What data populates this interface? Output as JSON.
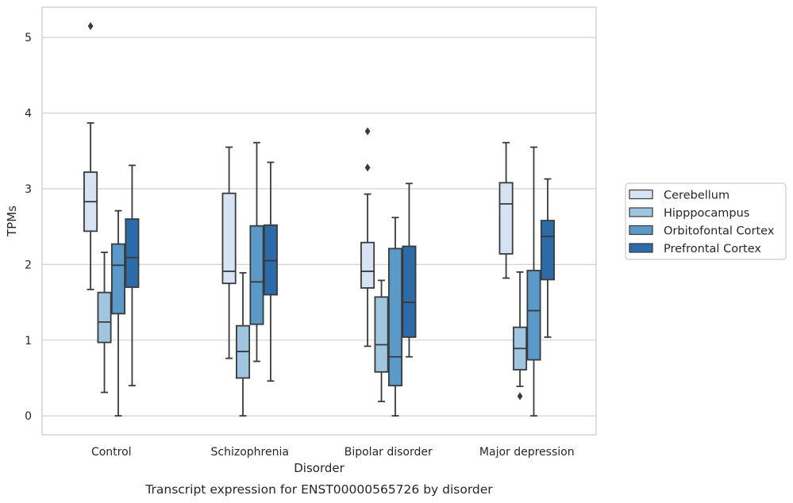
{
  "chart_data": {
    "type": "box",
    "title": "",
    "caption": "Transcript expression for ENST00000565726 by disorder",
    "xlabel": "Disorder",
    "ylabel": "TPMs",
    "ylim": [
      -0.25,
      5.4
    ],
    "yticks": [
      "0",
      "1",
      "2",
      "3",
      "4",
      "5"
    ],
    "categories": [
      "Control",
      "Schizophrenia",
      "Bipolar disorder",
      "Major depression"
    ],
    "grid": "horizontal",
    "legend_position": "right",
    "series": [
      {
        "name": "Cerebellum",
        "color": "#d6e3f2",
        "boxes": [
          {
            "whisker_low": 1.67,
            "q1": 2.44,
            "median": 2.83,
            "q3": 3.22,
            "whisker_high": 3.87,
            "outliers": [
              5.15
            ]
          },
          {
            "whisker_low": 0.76,
            "q1": 1.75,
            "median": 1.91,
            "q3": 2.94,
            "whisker_high": 3.55,
            "outliers": []
          },
          {
            "whisker_low": 0.92,
            "q1": 1.69,
            "median": 1.91,
            "q3": 2.29,
            "whisker_high": 2.93,
            "outliers": [
              3.28,
              3.76
            ]
          },
          {
            "whisker_low": 1.82,
            "q1": 2.14,
            "median": 2.8,
            "q3": 3.08,
            "whisker_high": 3.61,
            "outliers": []
          }
        ]
      },
      {
        "name": "Hipppocampus",
        "color": "#9fc5df",
        "boxes": [
          {
            "whisker_low": 0.31,
            "q1": 0.97,
            "median": 1.24,
            "q3": 1.63,
            "whisker_high": 2.16,
            "outliers": []
          },
          {
            "whisker_low": 0.0,
            "q1": 0.5,
            "median": 0.85,
            "q3": 1.19,
            "whisker_high": 1.89,
            "outliers": []
          },
          {
            "whisker_low": 0.19,
            "q1": 0.58,
            "median": 0.94,
            "q3": 1.57,
            "whisker_high": 1.79,
            "outliers": []
          },
          {
            "whisker_low": 0.39,
            "q1": 0.61,
            "median": 0.89,
            "q3": 1.17,
            "whisker_high": 1.9,
            "outliers": [
              0.26
            ]
          }
        ]
      },
      {
        "name": "Orbitofontal Cortex",
        "color": "#5b9ac8",
        "boxes": [
          {
            "whisker_low": 0.0,
            "q1": 1.35,
            "median": 1.99,
            "q3": 2.27,
            "whisker_high": 2.71,
            "outliers": []
          },
          {
            "whisker_low": 0.72,
            "q1": 1.21,
            "median": 1.77,
            "q3": 2.51,
            "whisker_high": 3.61,
            "outliers": []
          },
          {
            "whisker_low": 0.0,
            "q1": 0.4,
            "median": 0.78,
            "q3": 2.21,
            "whisker_high": 2.62,
            "outliers": []
          },
          {
            "whisker_low": 0.0,
            "q1": 0.74,
            "median": 1.39,
            "q3": 1.92,
            "whisker_high": 3.55,
            "outliers": []
          }
        ]
      },
      {
        "name": "Prefrontal Cortex",
        "color": "#2d6aa8",
        "boxes": [
          {
            "whisker_low": 0.4,
            "q1": 1.7,
            "median": 2.09,
            "q3": 2.6,
            "whisker_high": 3.31,
            "outliers": []
          },
          {
            "whisker_low": 0.46,
            "q1": 1.6,
            "median": 2.05,
            "q3": 2.52,
            "whisker_high": 3.35,
            "outliers": []
          },
          {
            "whisker_low": 0.78,
            "q1": 1.04,
            "median": 1.5,
            "q3": 2.24,
            "whisker_high": 3.07,
            "outliers": []
          },
          {
            "whisker_low": 1.04,
            "q1": 1.8,
            "median": 2.37,
            "q3": 2.58,
            "whisker_high": 3.13,
            "outliers": []
          }
        ]
      }
    ]
  }
}
